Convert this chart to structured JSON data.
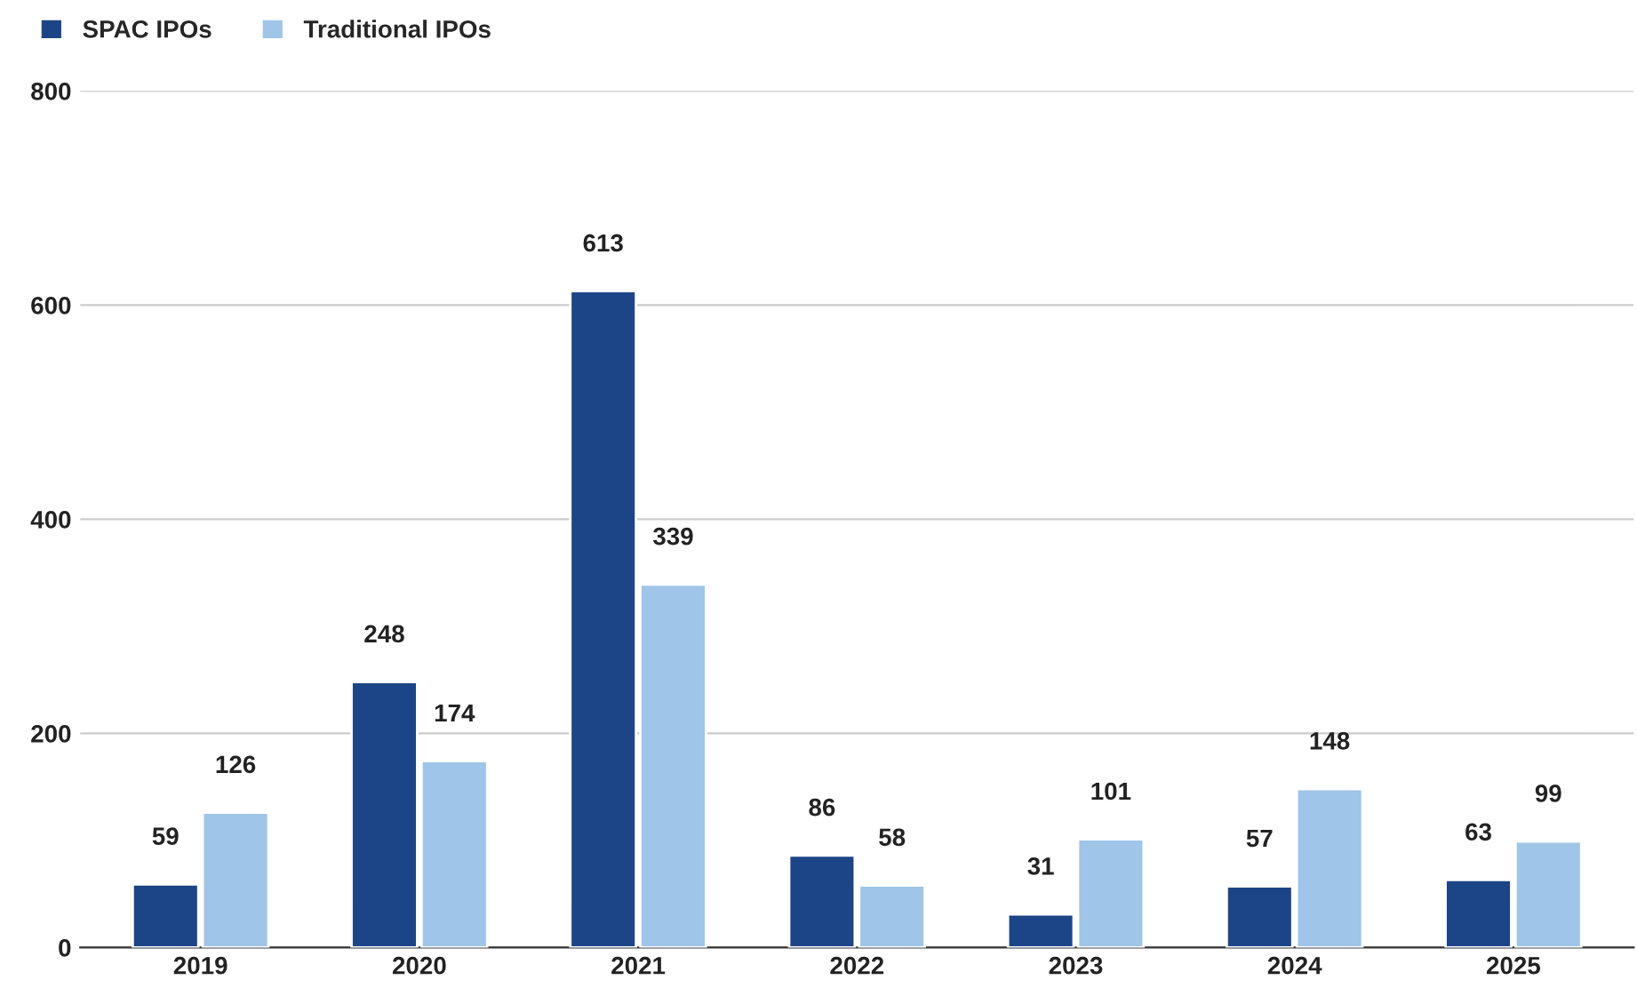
{
  "chart_data": {
    "type": "bar",
    "categories": [
      "2019",
      "2020",
      "2021",
      "2022",
      "2023",
      "2024",
      "2025"
    ],
    "series": [
      {
        "name": "SPAC IPOs",
        "color": "#1c4587",
        "values": [
          59,
          248,
          613,
          86,
          31,
          57,
          63
        ]
      },
      {
        "name": "Traditional IPOs",
        "color": "#9fc5e8",
        "values": [
          126,
          174,
          339,
          58,
          101,
          148,
          99
        ]
      }
    ],
    "ylim": [
      0,
      800
    ],
    "yticks": [
      0,
      200,
      400,
      600,
      800
    ],
    "grid": "y",
    "legend": "top left",
    "data_labels": true
  }
}
